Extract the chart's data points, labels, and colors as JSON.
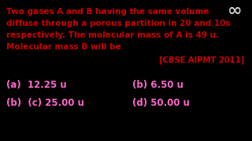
{
  "background_color": "#000000",
  "question_line1": "Two gases A and B having the same volume",
  "question_line2": "diffuse through a porous partition in 20 and 10s",
  "question_line3": "respectively. The molecular mass of A is 49 u.",
  "question_line4": "Molecular mass B will be",
  "reference": "[CBSE AIPMT 2011]",
  "question_color": "#cc0000",
  "reference_color": "#cc0000",
  "options_color": "#ff66cc",
  "opt_a": "(a)  12.25 u",
  "opt_b": "(b) 6.50 u",
  "opt_c": "(b)  (c) 25.00 u",
  "opt_d": "(d) 50.00 u",
  "infinity_color": "#cccccc",
  "font_size_question": 7.5,
  "font_size_options": 8.5,
  "font_size_ref": 7.2,
  "font_size_infinity": 16
}
